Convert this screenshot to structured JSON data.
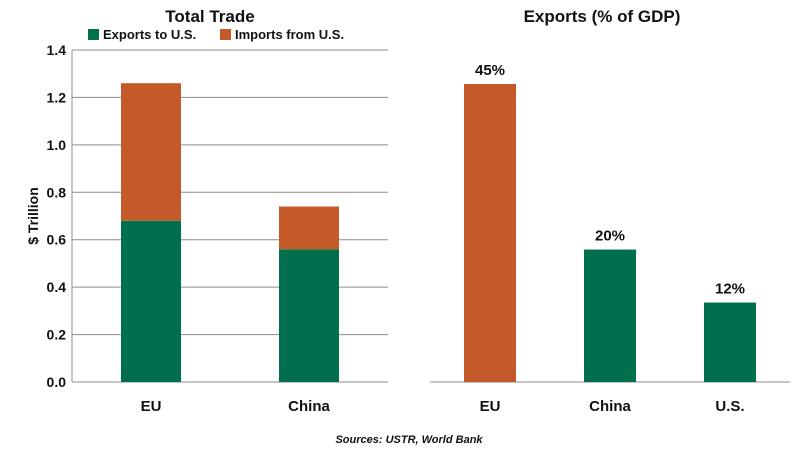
{
  "source_note": "Sources: USTR, World Bank",
  "colors": {
    "exports": "#006f4e",
    "imports": "#c4592a",
    "grid": "#8c8c8c"
  },
  "chart_data": [
    {
      "type": "bar",
      "stacked": true,
      "title": "Total Trade",
      "ylabel": "$ Trillion",
      "xlabel": "",
      "categories": [
        "EU",
        "China"
      ],
      "ylim": [
        0,
        1.4
      ],
      "yticks": [
        "0.0",
        "0.2",
        "0.4",
        "0.6",
        "0.8",
        "1.0",
        "1.2",
        "1.4"
      ],
      "grid": true,
      "legend": "top",
      "series": [
        {
          "name": "Exports to U.S.",
          "color": "#006f4e",
          "values": [
            0.68,
            0.56
          ]
        },
        {
          "name": "Imports from U.S.",
          "color": "#c4592a",
          "values": [
            0.58,
            0.18
          ]
        }
      ]
    },
    {
      "type": "bar",
      "stacked": false,
      "title": "Exports (% of GDP)",
      "xlabel": "",
      "ylabel": "",
      "categories": [
        "EU",
        "China",
        "U.S."
      ],
      "ylim": [
        0,
        56
      ],
      "grid": false,
      "values": [
        45,
        20,
        12
      ],
      "data_labels": [
        "45%",
        "20%",
        "12%"
      ],
      "bar_colors": [
        "#c4592a",
        "#006f4e",
        "#006f4e"
      ]
    }
  ]
}
